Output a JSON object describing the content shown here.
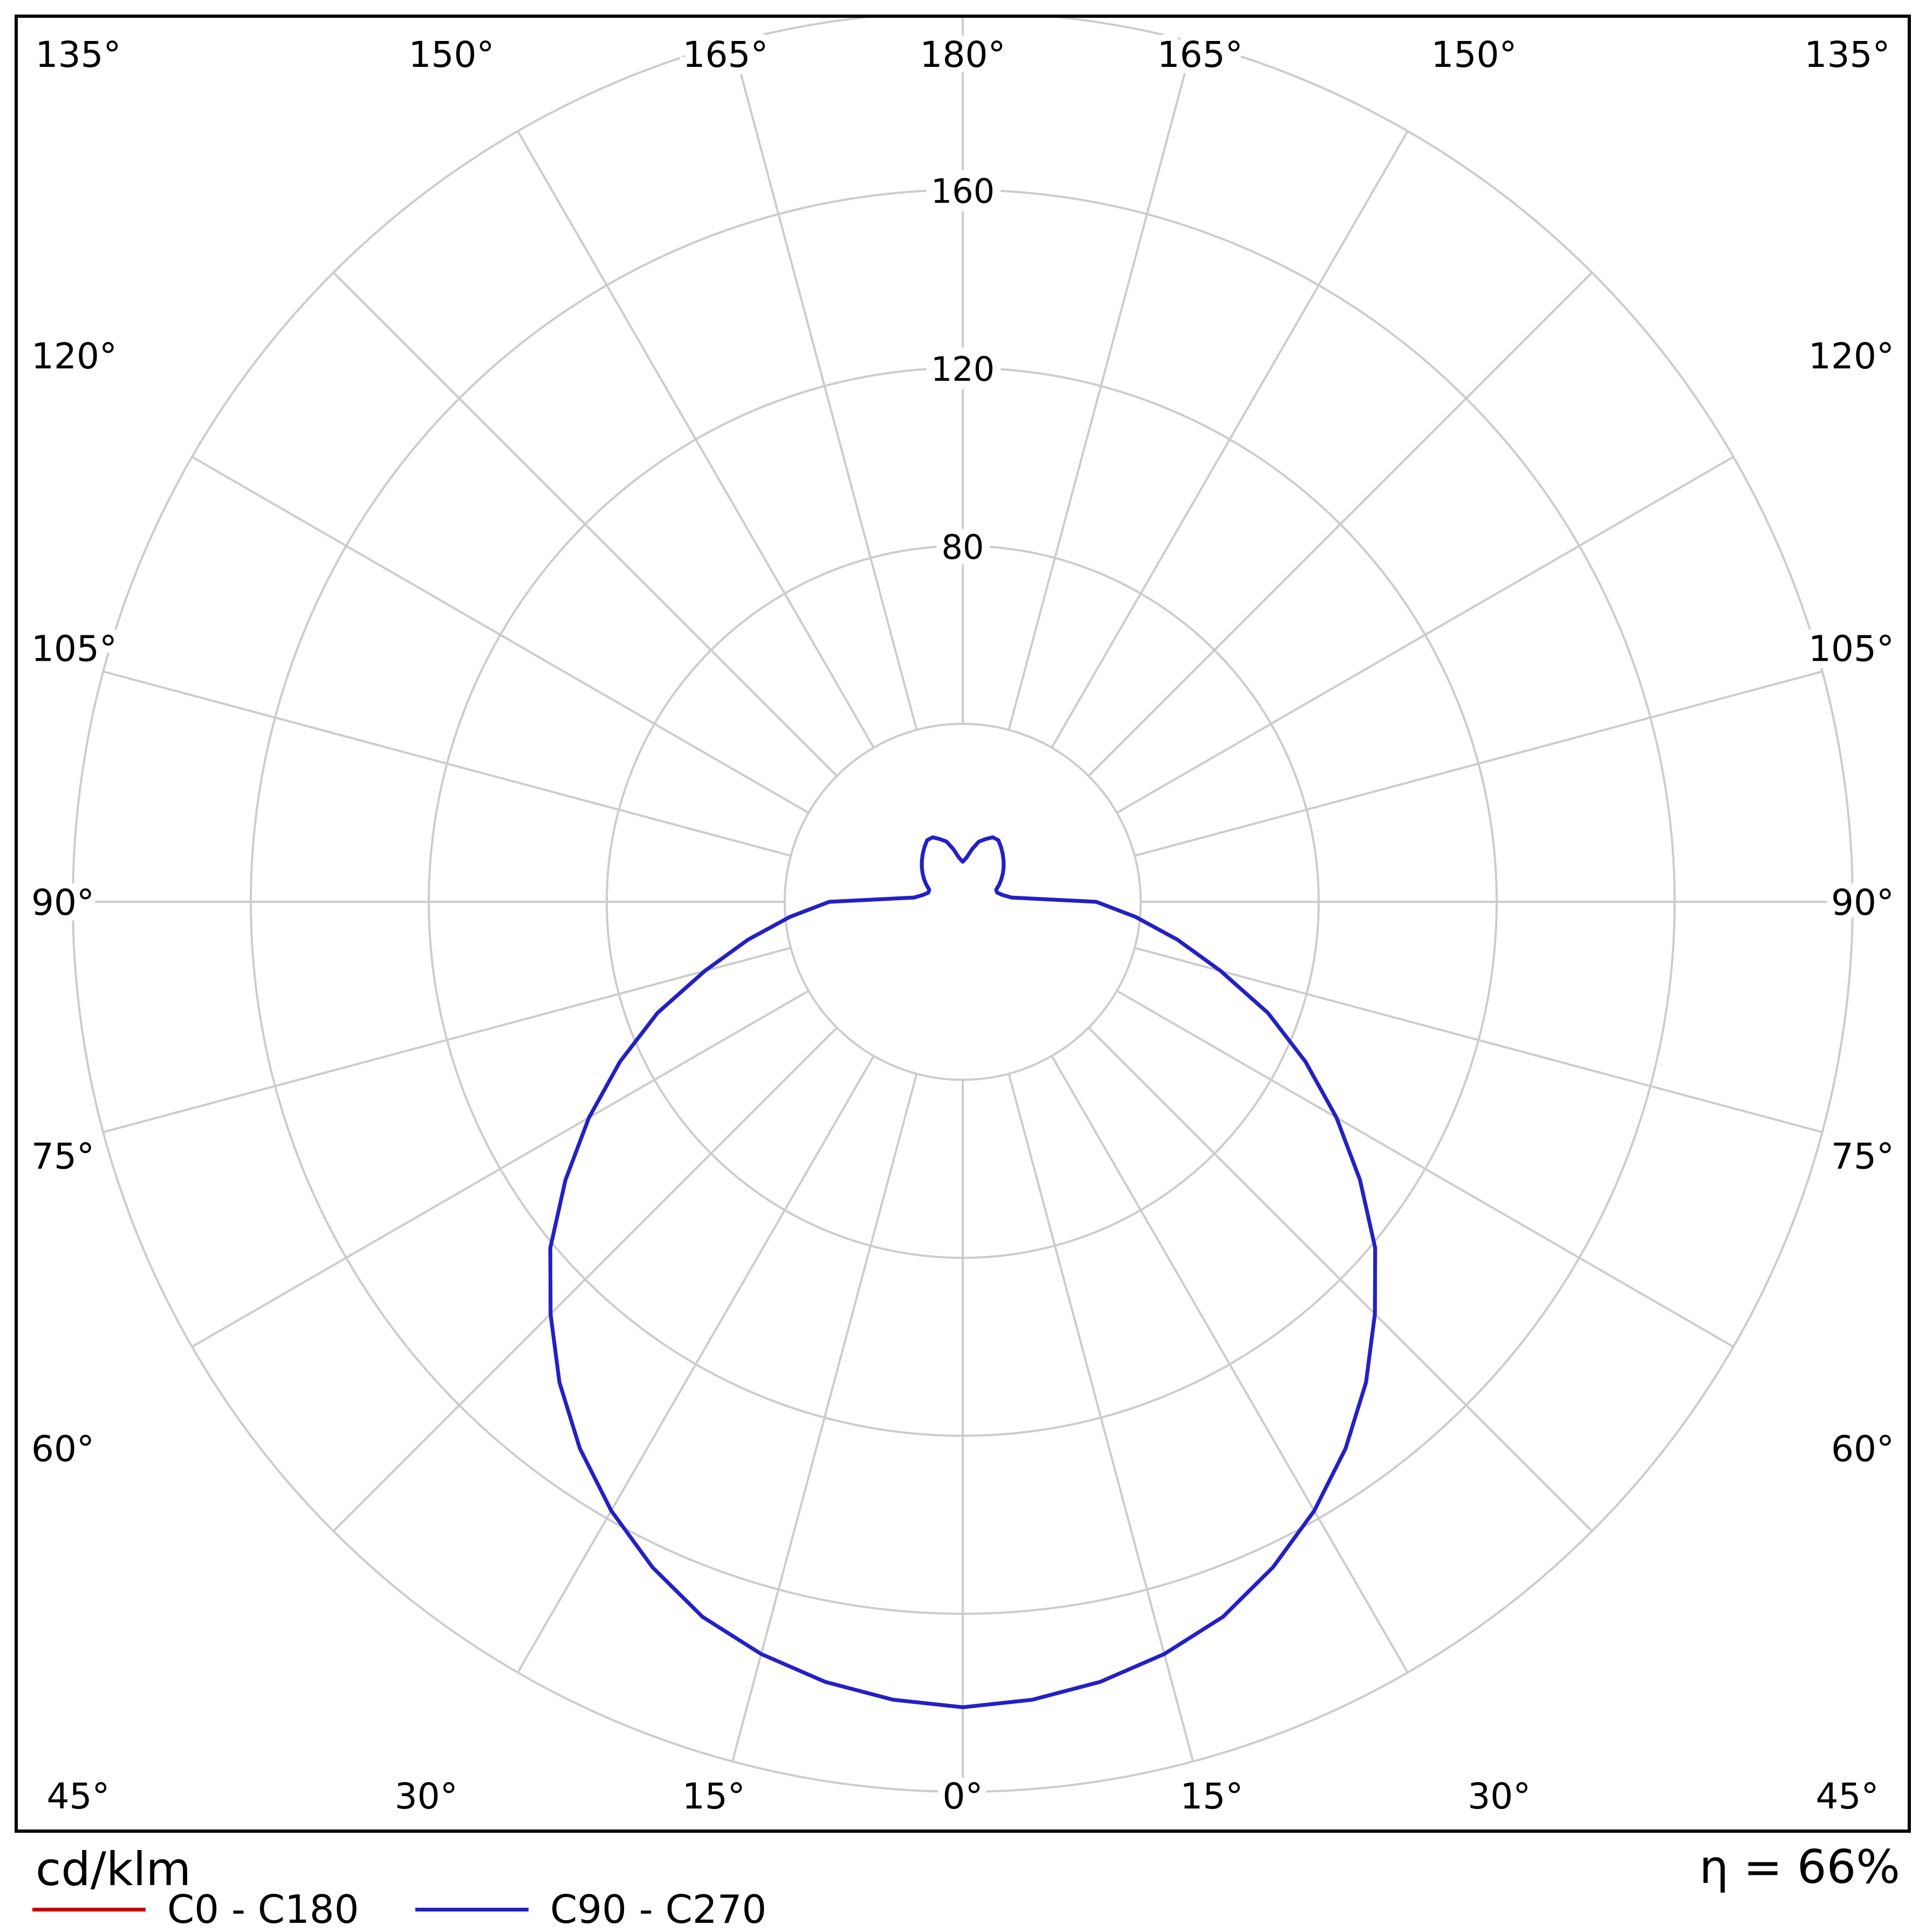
{
  "footer": {
    "unit_label": "cd/klm",
    "efficiency_label": "η = 66%"
  },
  "legend": [
    {
      "label": "C0 - C180",
      "color": "#cc0000"
    },
    {
      "label": "C90 - C270",
      "color": "#2121c8"
    }
  ],
  "chart_data": {
    "type": "polar",
    "subtype": "luminous-intensity-distribution",
    "unit": "cd/klm",
    "efficiency": "η = 66%",
    "grid_color": "#cccccc",
    "grid_on": true,
    "rlim": [
      0,
      200
    ],
    "radial_ticks": [
      40,
      80,
      120,
      160,
      200
    ],
    "radial_tick_labels": [
      80,
      120,
      160
    ],
    "angle_grid_step_deg": 15,
    "angle_tick_labels": [
      "0°",
      "15°",
      "30°",
      "45°",
      "60°",
      "75°",
      "90°",
      "105°",
      "120°",
      "135°",
      "150°",
      "165°",
      "180°"
    ],
    "gamma_step_deg": 5,
    "gamma_range_deg": [
      0,
      180
    ],
    "legend_position": "bottom-left",
    "series": [
      {
        "name": "C0 - C180",
        "color": "#cc0000",
        "values": [
          181,
          180,
          178,
          175,
          171,
          165,
          158,
          150,
          141,
          131,
          121,
          109,
          97,
          85,
          73,
          60,
          49,
          39,
          30,
          11,
          9,
          8,
          8,
          9,
          10,
          11,
          12,
          13,
          14,
          15,
          16,
          16,
          15,
          14,
          12,
          10,
          9
        ]
      },
      {
        "name": "C90 - C270",
        "color": "#2121c8",
        "values": [
          181,
          180,
          178,
          175,
          171,
          165,
          158,
          150,
          141,
          131,
          121,
          109,
          97,
          85,
          73,
          60,
          49,
          39,
          30,
          11,
          9,
          8,
          8,
          9,
          10,
          11,
          12,
          13,
          14,
          15,
          16,
          16,
          15,
          14,
          12,
          10,
          9
        ]
      }
    ]
  }
}
